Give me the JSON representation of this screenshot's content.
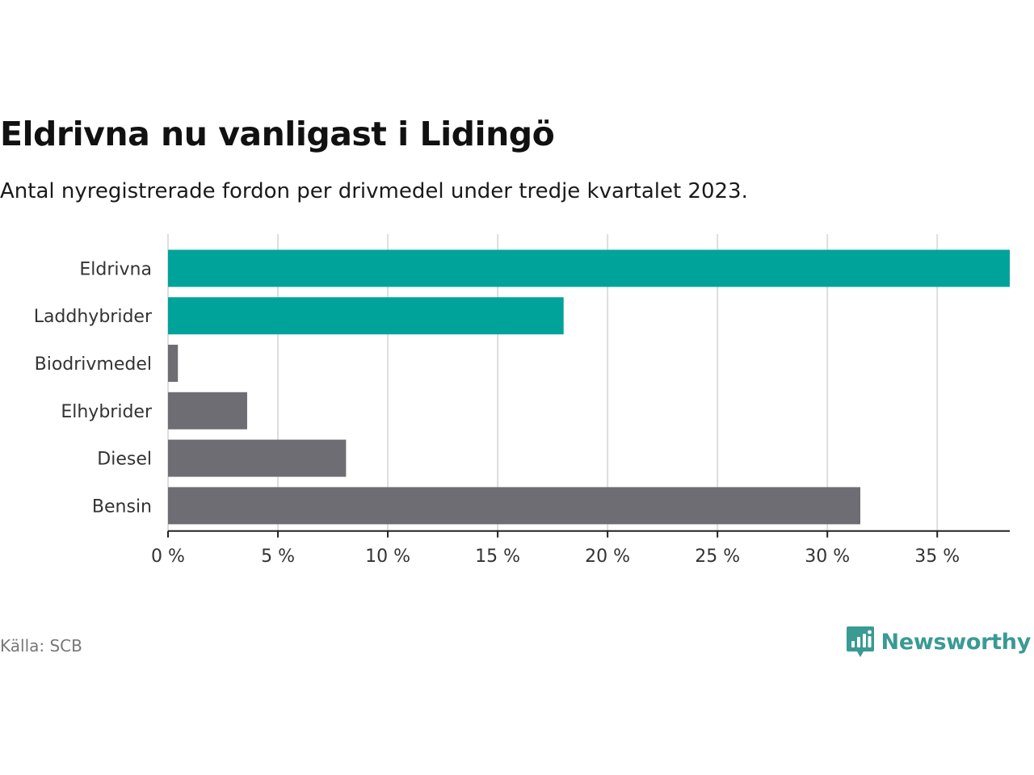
{
  "title": "Eldrivna nu vanligast i Lidingö",
  "subtitle": "Antal nyregistrerade fordon per drivmedel under tredje kvartalet 2023.",
  "source": "Källa: SCB",
  "brand": "Newsworthy",
  "colors": {
    "highlight": "#00a39a",
    "default": "#6e6d73",
    "grid": "#dddddd",
    "axis": "#222222",
    "brand": "#3a9a94"
  },
  "chart_data": {
    "type": "bar",
    "orientation": "horizontal",
    "title": "Eldrivna nu vanligast i Lidingö",
    "subtitle": "Antal nyregistrerade fordon per drivmedel under tredje kvartalet 2023.",
    "categories": [
      "Eldrivna",
      "Laddhybrider",
      "Biodrivmedel",
      "Elhybrider",
      "Diesel",
      "Bensin"
    ],
    "values": [
      38.3,
      18.0,
      0.45,
      3.6,
      8.1,
      31.5
    ],
    "highlighted": [
      true,
      true,
      false,
      false,
      false,
      false
    ],
    "xlim": [
      0,
      38.3
    ],
    "xticks": [
      0,
      5,
      10,
      15,
      20,
      25,
      30,
      35
    ],
    "xtick_labels": [
      "0 %",
      "5 %",
      "10 %",
      "15 %",
      "20 %",
      "25 %",
      "30 %",
      "35 %"
    ],
    "grid": true,
    "xlabel": "",
    "ylabel": ""
  }
}
